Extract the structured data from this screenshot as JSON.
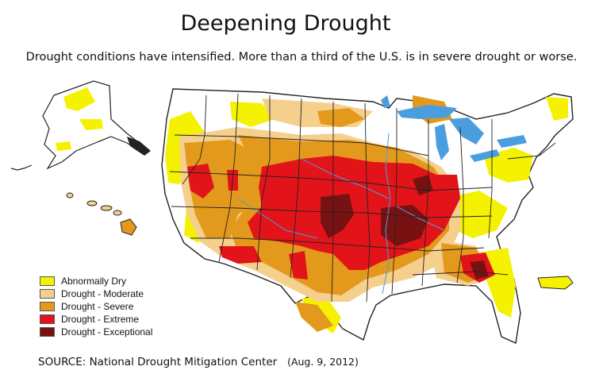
{
  "title": "Deepening Drought",
  "subtitle": "Drought conditions have intensified. More than a third of the U.S. is in severe drought or worse.",
  "legend": [
    {
      "label": "Abnormally Dry",
      "color": "#f4f200"
    },
    {
      "label": "Drought - Moderate",
      "color": "#f5cf8c"
    },
    {
      "label": "Drought - Severe",
      "color": "#e39a1c"
    },
    {
      "label": "Drought - Extreme",
      "color": "#e2141a"
    },
    {
      "label": "Drought - Exceptional",
      "color": "#781212"
    }
  ],
  "source": "SOURCE: National Drought Mitigation Center",
  "source_date": "(Aug. 9, 2012)",
  "colors": {
    "land": "#ffffff",
    "water": "#4a9ede",
    "borders": "#222222"
  }
}
